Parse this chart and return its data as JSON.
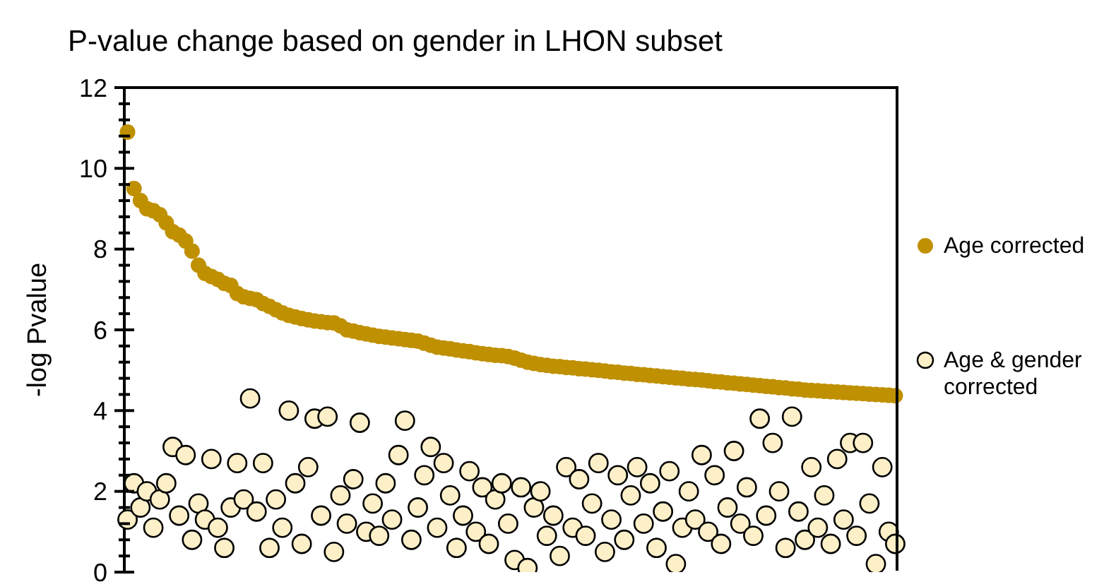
{
  "chart_data": {
    "type": "scatter",
    "title": "P-value change based on gender in LHON subset",
    "ylabel": "-log Pvalue",
    "categories": [
      null,
      null,
      null,
      null,
      null,
      null,
      null,
      null,
      null,
      null,
      null,
      null,
      null,
      null,
      null,
      null,
      null,
      null,
      null,
      null,
      null,
      null,
      null,
      null,
      null,
      null,
      null,
      null,
      null,
      null,
      null,
      null,
      null,
      null,
      null,
      null,
      null,
      null,
      null,
      null,
      null,
      null,
      null,
      null,
      null,
      null,
      null,
      null,
      null,
      null,
      null,
      null,
      null,
      null,
      null,
      null,
      null,
      null,
      null,
      null,
      null,
      null,
      null,
      null,
      null,
      null,
      null,
      null,
      null,
      null,
      null,
      null,
      null,
      null,
      null,
      null,
      null,
      null,
      null,
      null,
      null,
      null,
      null,
      null,
      null,
      null,
      null,
      null,
      null,
      null,
      null,
      null,
      null,
      null,
      null,
      null,
      null,
      null,
      null,
      null,
      null,
      null,
      null,
      null,
      null,
      null,
      null,
      null,
      null,
      null,
      null,
      null,
      null,
      null,
      null,
      null,
      null,
      null,
      null,
      null
    ],
    "series": [
      {
        "name": "Age corrected",
        "color": "#bf9000",
        "values": [
          10.9,
          9.5,
          9.2,
          9.0,
          8.95,
          8.85,
          8.65,
          8.43,
          8.35,
          8.2,
          7.95,
          7.6,
          7.4,
          7.32,
          7.25,
          7.15,
          7.1,
          6.9,
          6.82,
          6.78,
          6.75,
          6.65,
          6.58,
          6.5,
          6.42,
          6.36,
          6.32,
          6.28,
          6.25,
          6.22,
          6.2,
          6.18,
          6.17,
          6.1,
          6.0,
          5.97,
          5.93,
          5.9,
          5.87,
          5.84,
          5.82,
          5.8,
          5.78,
          5.76,
          5.74,
          5.72,
          5.67,
          5.62,
          5.57,
          5.55,
          5.53,
          5.5,
          5.48,
          5.46,
          5.43,
          5.41,
          5.39,
          5.37,
          5.36,
          5.34,
          5.3,
          5.25,
          5.2,
          5.17,
          5.14,
          5.12,
          5.1,
          5.09,
          5.07,
          5.06,
          5.04,
          5.03,
          5.01,
          5.0,
          4.98,
          4.96,
          4.95,
          4.93,
          4.92,
          4.9,
          4.89,
          4.87,
          4.86,
          4.84,
          4.83,
          4.81,
          4.8,
          4.78,
          4.77,
          4.76,
          4.74,
          4.72,
          4.71,
          4.69,
          4.68,
          4.66,
          4.65,
          4.63,
          4.62,
          4.6,
          4.59,
          4.57,
          4.56,
          4.54,
          4.53,
          4.51,
          4.5,
          4.49,
          4.48,
          4.47,
          4.46,
          4.45,
          4.44,
          4.43,
          4.42,
          4.41,
          4.4,
          4.39,
          4.38,
          4.37
        ]
      },
      {
        "name": "Age & gender corrected",
        "color": "#fdf0c8",
        "values": [
          1.3,
          2.2,
          1.6,
          2.0,
          1.1,
          1.8,
          2.2,
          3.1,
          1.4,
          2.9,
          0.8,
          1.7,
          1.3,
          2.8,
          1.1,
          0.6,
          1.6,
          2.7,
          1.8,
          4.3,
          1.5,
          2.7,
          0.6,
          1.8,
          1.1,
          4.0,
          2.2,
          0.7,
          2.6,
          3.8,
          1.4,
          3.85,
          0.5,
          1.9,
          1.2,
          2.3,
          3.7,
          1.0,
          1.7,
          0.9,
          2.2,
          1.3,
          2.9,
          3.75,
          0.8,
          1.6,
          2.4,
          3.1,
          1.1,
          2.7,
          1.9,
          0.6,
          1.4,
          2.5,
          1.0,
          2.1,
          0.7,
          1.8,
          2.2,
          1.2,
          0.3,
          2.1,
          0.1,
          1.6,
          2.0,
          0.9,
          1.4,
          0.4,
          2.6,
          1.1,
          2.3,
          0.9,
          1.7,
          2.7,
          0.5,
          1.3,
          2.4,
          0.8,
          1.9,
          2.6,
          1.2,
          2.2,
          0.6,
          1.5,
          2.5,
          0.2,
          1.1,
          2.0,
          1.3,
          2.9,
          1.0,
          2.4,
          0.7,
          1.6,
          3.0,
          1.2,
          2.1,
          0.9,
          3.8,
          1.4,
          3.2,
          2.0,
          0.6,
          3.85,
          1.5,
          0.8,
          2.6,
          1.1,
          1.9,
          0.7,
          2.8,
          1.3,
          3.2,
          0.9,
          3.2,
          1.7,
          0.2,
          2.6,
          1.0,
          0.7
        ]
      }
    ],
    "ylim": [
      0,
      12
    ],
    "yticks": [
      0,
      {
        "value": 0.4,
        "label": null
      },
      {
        "value": 0.8,
        "label": null
      },
      {
        "value": 1.2,
        "label": null
      },
      {
        "value": 1.6,
        "label": null
      },
      2,
      {
        "value": 2.4,
        "label": null
      },
      {
        "value": 2.8,
        "label": null
      },
      {
        "value": 3.2,
        "label": null
      },
      {
        "value": 3.6,
        "label": null
      },
      4,
      {
        "value": 4.4,
        "label": null
      },
      {
        "value": 4.8,
        "label": null
      },
      {
        "value": 5.2,
        "label": null
      },
      {
        "value": 5.6,
        "label": null
      },
      6,
      {
        "value": 6.4,
        "label": null
      },
      {
        "value": 6.8,
        "label": null
      },
      {
        "value": 7.2,
        "label": null
      },
      {
        "value": 7.6,
        "label": null
      },
      8,
      {
        "value": 8.4,
        "label": null
      },
      {
        "value": 8.8,
        "label": null
      },
      {
        "value": 9.2,
        "label": null
      },
      {
        "value": 9.6,
        "label": null
      },
      10,
      {
        "value": 10.4,
        "label": null
      },
      {
        "value": 10.8,
        "label": null
      },
      {
        "value": 11.2,
        "label": null
      },
      {
        "value": 11.6,
        "label": null
      },
      12
    ],
    "tick_labels": "y",
    "grid": false,
    "legend": "right",
    "marker": "circle"
  }
}
